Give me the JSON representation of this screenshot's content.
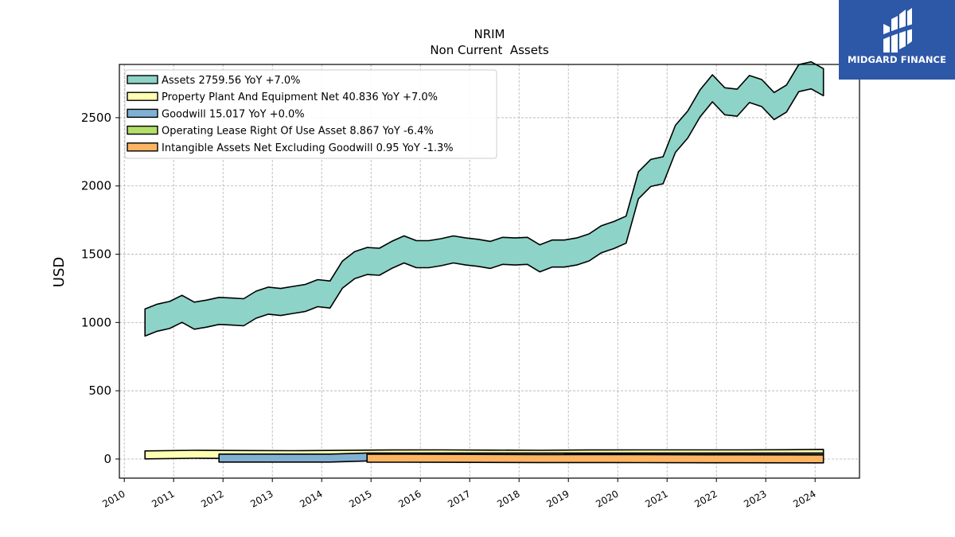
{
  "chart_data": {
    "type": "area",
    "title": "NRIM",
    "subtitle": "Non Current  Assets",
    "ylabel": "USD",
    "xlabel": "",
    "xlim": [
      2009.9,
      2024.9
    ],
    "ylim": [
      -140,
      2890
    ],
    "yticks": [
      0,
      500,
      1000,
      1500,
      2000,
      2500
    ],
    "xticks": [
      "2010",
      "2011",
      "2012",
      "2013",
      "2014",
      "2015",
      "2016",
      "2017",
      "2018",
      "2019",
      "2020",
      "2021",
      "2022",
      "2023",
      "2024"
    ],
    "grid": true,
    "legend_position": "top-left",
    "series": [
      {
        "name": "Assets",
        "legend_label": "Assets  2759.56 YoY +7.0%",
        "color": "#8dd3c7",
        "x": [
          2010.42,
          2010.67,
          2010.92,
          2011.17,
          2011.42,
          2011.67,
          2011.92,
          2012.17,
          2012.42,
          2012.67,
          2012.92,
          2013.17,
          2013.42,
          2013.67,
          2013.92,
          2014.17,
          2014.42,
          2014.67,
          2014.92,
          2015.17,
          2015.42,
          2015.67,
          2015.92,
          2016.17,
          2016.42,
          2016.67,
          2016.92,
          2017.17,
          2017.42,
          2017.67,
          2017.92,
          2018.17,
          2018.42,
          2018.67,
          2018.92,
          2019.17,
          2019.42,
          2019.67,
          2019.92,
          2020.17,
          2020.42,
          2020.67,
          2020.92,
          2021.17,
          2021.42,
          2021.67,
          2021.92,
          2022.17,
          2022.42,
          2022.67,
          2022.92,
          2023.17,
          2023.42,
          2023.67,
          2023.92,
          2024.17
        ],
        "values": [
          1000,
          1035,
          1055,
          1100,
          1050,
          1065,
          1085,
          1080,
          1075,
          1130,
          1160,
          1150,
          1165,
          1180,
          1215,
          1205,
          1350,
          1420,
          1450,
          1445,
          1495,
          1535,
          1500,
          1500,
          1515,
          1535,
          1520,
          1510,
          1495,
          1525,
          1520,
          1525,
          1470,
          1505,
          1505,
          1520,
          1550,
          1610,
          1640,
          1680,
          2005,
          2095,
          2115,
          2345,
          2450,
          2605,
          2715,
          2620,
          2610,
          2710,
          2680,
          2585,
          2640,
          2790,
          2810,
          2760
        ]
      },
      {
        "name": "Property Plant And Equipment Net",
        "legend_label": "Property Plant And Equipment Net  40.836 YoY +7.0%",
        "color": "#ffffb3",
        "x": [
          2010.42,
          2011.42,
          2012.42,
          2013.42,
          2014.42,
          2015.42,
          2016.42,
          2017.42,
          2018.42,
          2019.42,
          2020.42,
          2021.42,
          2022.42,
          2023.42,
          2024.17
        ],
        "values": [
          30,
          35,
          33,
          32,
          34,
          37,
          38,
          36,
          35,
          37,
          38,
          38,
          38,
          39,
          41
        ]
      },
      {
        "name": "Goodwill",
        "legend_label": "Goodwill  15.017 YoY +0.0%",
        "color": "#80b1d3",
        "x": [
          2011.92,
          2014.17,
          2014.92,
          2015.42,
          2016.42,
          2017.42,
          2018.42,
          2019.42,
          2020.42,
          2021.42,
          2022.42,
          2023.42,
          2024.17
        ],
        "values": [
          7,
          7,
          15,
          15,
          15,
          15,
          15,
          15,
          15,
          15,
          15,
          15,
          15
        ]
      },
      {
        "name": "Operating Lease Right Of Use Asset",
        "legend_label": "Operating Lease Right Of Use Asset  8.867 YoY -6.4%",
        "color": "#b3de69",
        "x": [
          2018.92,
          2019.42,
          2020.42,
          2021.42,
          2022.42,
          2023.42,
          2024.17
        ],
        "values": [
          11,
          12,
          11,
          10,
          10,
          9,
          8.867
        ]
      },
      {
        "name": "Intangible Assets Net Excluding Goodwill",
        "legend_label": "Intangible Assets Net Excluding Goodwill  0.95 YoY -1.3%",
        "color": "#fdb462",
        "x": [
          2014.92,
          2016.42,
          2018.42,
          2020.42,
          2022.42,
          2024.17
        ],
        "values": [
          6,
          5,
          3.5,
          2.5,
          1.5,
          0.95
        ]
      }
    ]
  },
  "logo": {
    "name": "MIDGARD FINANCE"
  }
}
